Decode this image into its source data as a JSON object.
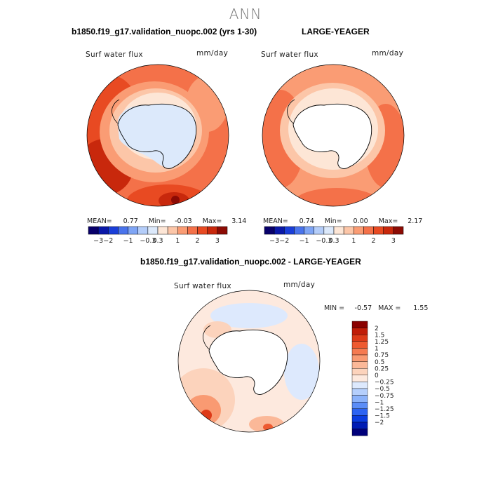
{
  "main_title": "ANN",
  "panels": {
    "p1": {
      "title": "b1850.f19_g17.validation_nuopc.002 (yrs 1-30)",
      "field": "Surf water flux",
      "units": "mm/day",
      "stats": {
        "mean_label": "MEAN=",
        "mean": "0.77",
        "min_label": "Min=",
        "min": "-0.03",
        "max_label": "Max=",
        "max": "3.14"
      }
    },
    "p2": {
      "title": "LARGE-YEAGER",
      "field": "Surf water flux",
      "units": "mm/day",
      "stats": {
        "mean_label": "MEAN=",
        "mean": "0.74",
        "min_label": "Min=",
        "min": "0.00",
        "max_label": "Max=",
        "max": "2.17"
      }
    },
    "p3": {
      "title": "b1850.f19_g17.validation_nuopc.002 - LARGE-YEAGER",
      "field": "Surf water flux",
      "units": "mm/day",
      "stats": {
        "min_label": "MIN =",
        "min": "-0.57",
        "max_label": "MAX =",
        "max": "1.55"
      }
    }
  },
  "colors": {
    "top_scale": [
      "#08006a",
      "#0a18a8",
      "#1a3ed8",
      "#4a74ec",
      "#7fa5f5",
      "#b4cdf9",
      "#dce9fb",
      "#fde6d6",
      "#fcc6a8",
      "#fa9c74",
      "#f47149",
      "#e84a22",
      "#c8280c",
      "#8c0b04"
    ],
    "diff_scale": [
      "#00007a",
      "#001cb4",
      "#0a3ce0",
      "#2c63f2",
      "#5b8df7",
      "#8bb2fa",
      "#b5cffc",
      "#dde9fd",
      "#fde9de",
      "#fcd3bc",
      "#fbb898",
      "#f99a72",
      "#f57a50",
      "#ee5a30",
      "#dd3a18",
      "#c01c08",
      "#8a0000"
    ],
    "land": "#ffffff",
    "coast": "#000000"
  },
  "legends": {
    "top_ticks": [
      "-3",
      "-2",
      "-1",
      "-0.3",
      "0.3",
      "1",
      "2",
      "3"
    ],
    "diff_labels": [
      "2",
      "1.5",
      "1.25",
      "1",
      "0.75",
      "0.5",
      "0.25",
      "0",
      "-0.25",
      "-0.5",
      "-0.75",
      "-1",
      "-1.25",
      "-1.5",
      "-2"
    ]
  },
  "chart_data": [
    {
      "type": "heatmap",
      "projection": "south-polar-stereographic",
      "title": "b1850.f19_g17.validation_nuopc.002 (yrs 1-30)",
      "field": "Surf water flux",
      "units": "mm/day",
      "mean": 0.77,
      "min": -0.03,
      "max": 3.14,
      "contour_levels": [
        -3,
        -2,
        -1,
        -0.3,
        0.3,
        1,
        2,
        3
      ],
      "colorbar_ticks": [
        "-3",
        "-2",
        "-1",
        "-0.3",
        "0.3",
        "1",
        "2",
        "3"
      ]
    },
    {
      "type": "heatmap",
      "projection": "south-polar-stereographic",
      "title": "LARGE-YEAGER",
      "field": "Surf water flux",
      "units": "mm/day",
      "mean": 0.74,
      "min": 0.0,
      "max": 2.17,
      "contour_levels": [
        -3,
        -2,
        -1,
        -0.3,
        0.3,
        1,
        2,
        3
      ],
      "colorbar_ticks": [
        "-3",
        "-2",
        "-1",
        "-0.3",
        "0.3",
        "1",
        "2",
        "3"
      ]
    },
    {
      "type": "heatmap",
      "projection": "south-polar-stereographic",
      "title": "b1850.f19_g17.validation_nuopc.002 - LARGE-YEAGER",
      "field": "Surf water flux",
      "units": "mm/day",
      "min": -0.57,
      "max": 1.55,
      "contour_levels": [
        -2,
        -1.5,
        -1.25,
        -1,
        -0.75,
        -0.5,
        -0.25,
        0,
        0.25,
        0.5,
        0.75,
        1,
        1.25,
        1.5,
        2
      ],
      "colorbar_ticks": [
        "2",
        "1.5",
        "1.25",
        "1",
        "0.75",
        "0.5",
        "0.25",
        "0",
        "-0.25",
        "-0.5",
        "-0.75",
        "-1",
        "-1.25",
        "-1.5",
        "-2"
      ]
    }
  ]
}
